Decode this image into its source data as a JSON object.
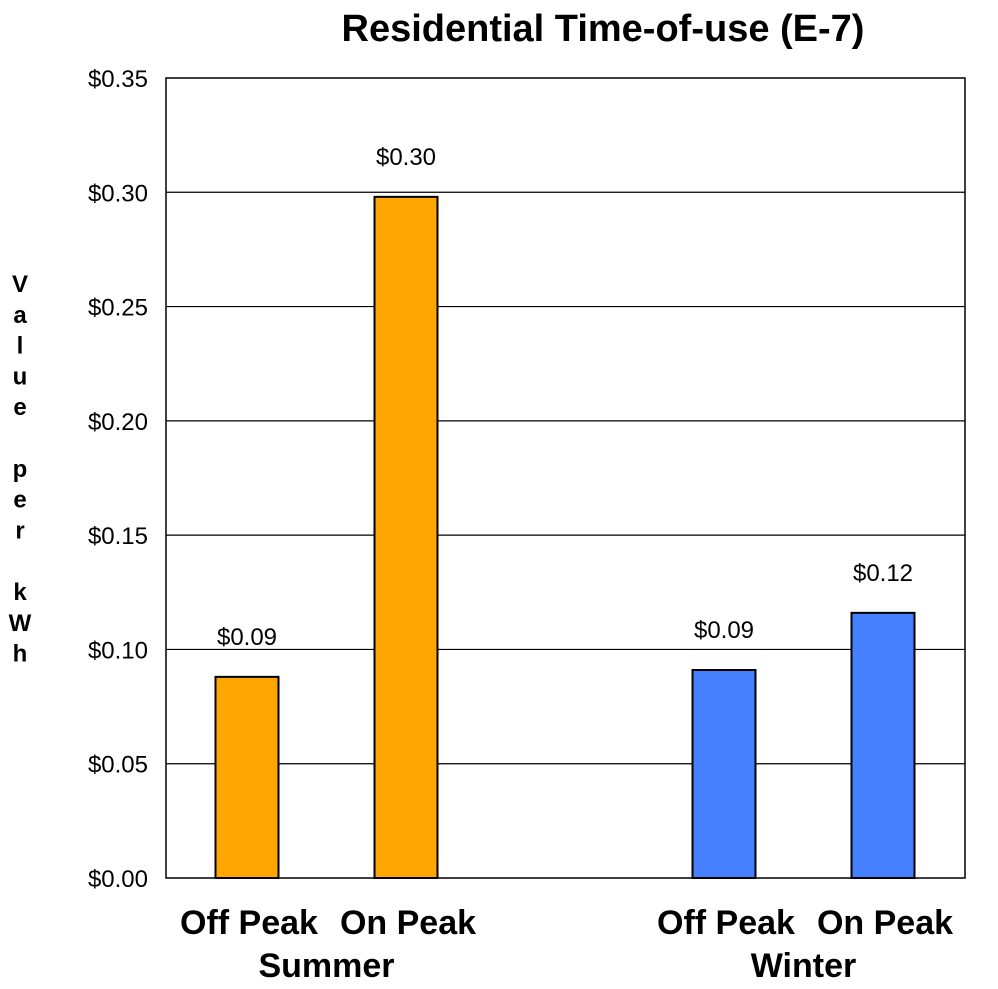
{
  "chart_data": {
    "type": "bar",
    "title": "Residential Time-of-use (E-7)",
    "ylabel": "Value per kWh",
    "ylim": [
      0,
      0.35
    ],
    "yticks": [
      "$0.00",
      "$0.05",
      "$0.10",
      "$0.15",
      "$0.20",
      "$0.25",
      "$0.30",
      "$0.35"
    ],
    "grid": true,
    "groups": [
      {
        "name": "Summer",
        "color": "#FFA500",
        "categories": [
          "Off Peak",
          "On Peak"
        ],
        "values": [
          0.088,
          0.298
        ],
        "labels": [
          "$0.09",
          "$0.30"
        ]
      },
      {
        "name": "Winter",
        "color": "#4480FF",
        "categories": [
          "Off Peak",
          "On Peak"
        ],
        "values": [
          0.091,
          0.116
        ],
        "labels": [
          "$0.09",
          "$0.12"
        ]
      }
    ]
  }
}
